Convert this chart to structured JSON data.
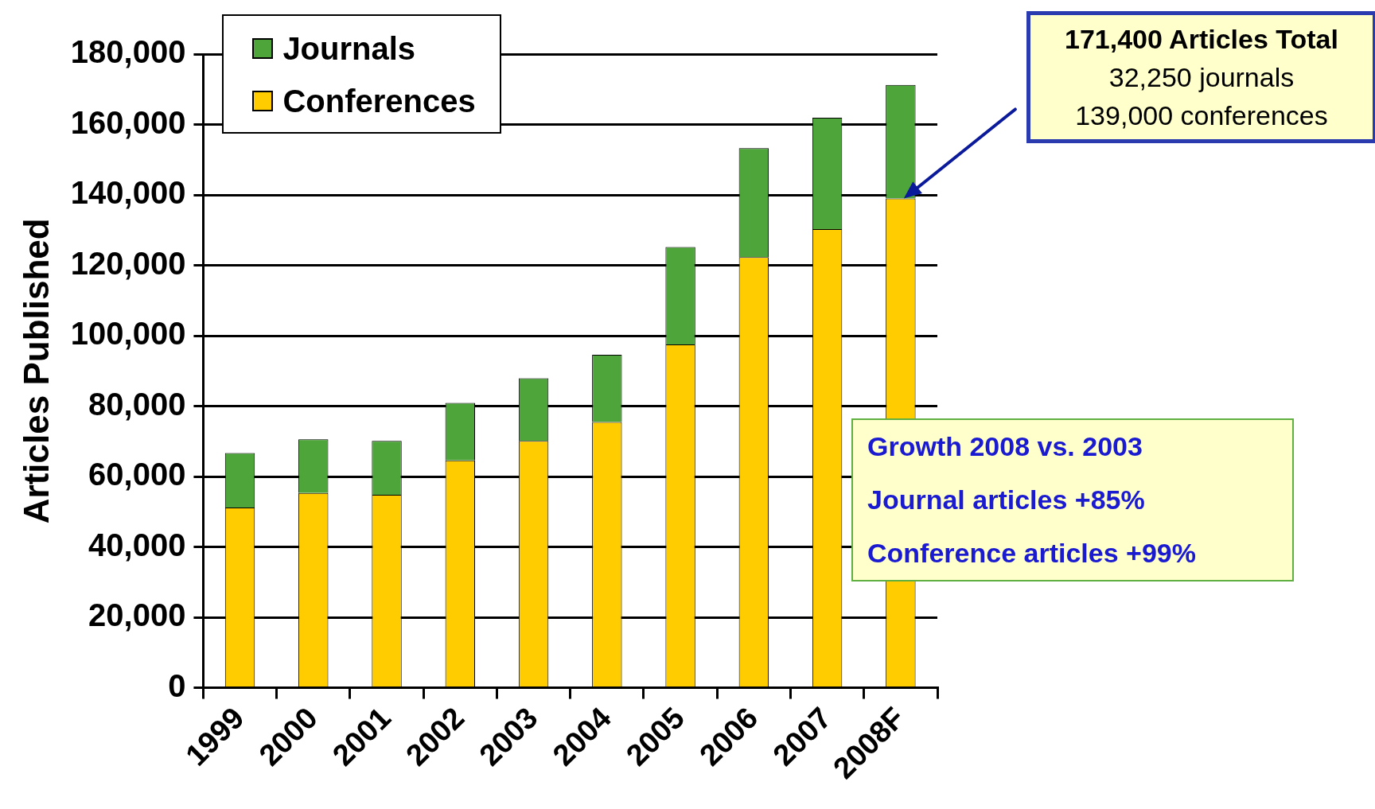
{
  "chart_data": {
    "type": "bar",
    "stacked": true,
    "ylabel": "Articles Published",
    "categories": [
      "1999",
      "2000",
      "2001",
      "2002",
      "2003",
      "2004",
      "2005",
      "2006",
      "2007",
      "2008F"
    ],
    "series": [
      {
        "name": "Conferences",
        "color": "#ffcc00",
        "values": [
          51200,
          55300,
          54800,
          64600,
          70100,
          75500,
          97500,
          122300,
          130300,
          139000
        ]
      },
      {
        "name": "Journals",
        "color": "#4ea53a",
        "values": [
          15500,
          15300,
          15300,
          16300,
          17800,
          19100,
          27700,
          31000,
          31600,
          32250
        ]
      }
    ],
    "ylim": [
      0,
      180000
    ],
    "yticks": [
      {
        "value": 0,
        "label": "0"
      },
      {
        "value": 20000,
        "label": "20,000"
      },
      {
        "value": 40000,
        "label": "40,000"
      },
      {
        "value": 60000,
        "label": "60,000"
      },
      {
        "value": 80000,
        "label": "80,000"
      },
      {
        "value": 100000,
        "label": "100,000"
      },
      {
        "value": 120000,
        "label": "120,000"
      },
      {
        "value": 140000,
        "label": "140,000"
      },
      {
        "value": 160000,
        "label": "160,000"
      },
      {
        "value": 180000,
        "label": "180,000"
      }
    ],
    "grid": "y",
    "legend": "top left",
    "annotations": [
      "171,400 Articles Total\n32,250 journals\n139,000 conferences",
      "Growth 2008 vs. 2003\nJournal articles +85%\nConference articles +99%"
    ]
  }
}
